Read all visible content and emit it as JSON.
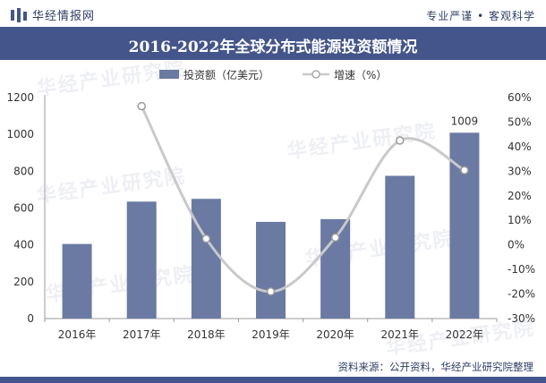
{
  "header": {
    "brand": "华经情报网",
    "tagline": "专业严谨 • 客观科学"
  },
  "watermark": "华经产业研究院",
  "source": "资料来源：公开资料，华经产业研究院整理",
  "colors": {
    "bar": "#6a7aa3",
    "line": "#c9c9c9",
    "marker_fill": "#ffffff",
    "title_bg": "#43558a"
  },
  "chart_data": {
    "type": "bar",
    "title": "2016-2022年全球分布式能源投资额情况",
    "categories": [
      "2016年",
      "2017年",
      "2018年",
      "2019年",
      "2020年",
      "2021年",
      "2022年"
    ],
    "series": [
      {
        "name": "投资额（亿美元）",
        "type": "bar",
        "axis": "left",
        "values": [
          405,
          635,
          650,
          525,
          540,
          775,
          1009
        ]
      },
      {
        "name": "增速（%）",
        "type": "line",
        "axis": "right",
        "values": [
          null,
          56.5,
          2.5,
          -19,
          3,
          42.5,
          30.4
        ]
      }
    ],
    "data_labels": [
      {
        "category": "2022年",
        "text": "1009"
      }
    ],
    "y_left": {
      "min": 0,
      "max": 1200,
      "ticks": [
        "0",
        "200",
        "400",
        "600",
        "800",
        "1000",
        "1200"
      ]
    },
    "y_right": {
      "min": -30,
      "max": 60,
      "ticks": [
        "-30%",
        "-20%",
        "-10%",
        "0%",
        "10%",
        "20%",
        "30%",
        "40%",
        "50%",
        "60%"
      ]
    },
    "legend": "top-center",
    "grid": false
  }
}
